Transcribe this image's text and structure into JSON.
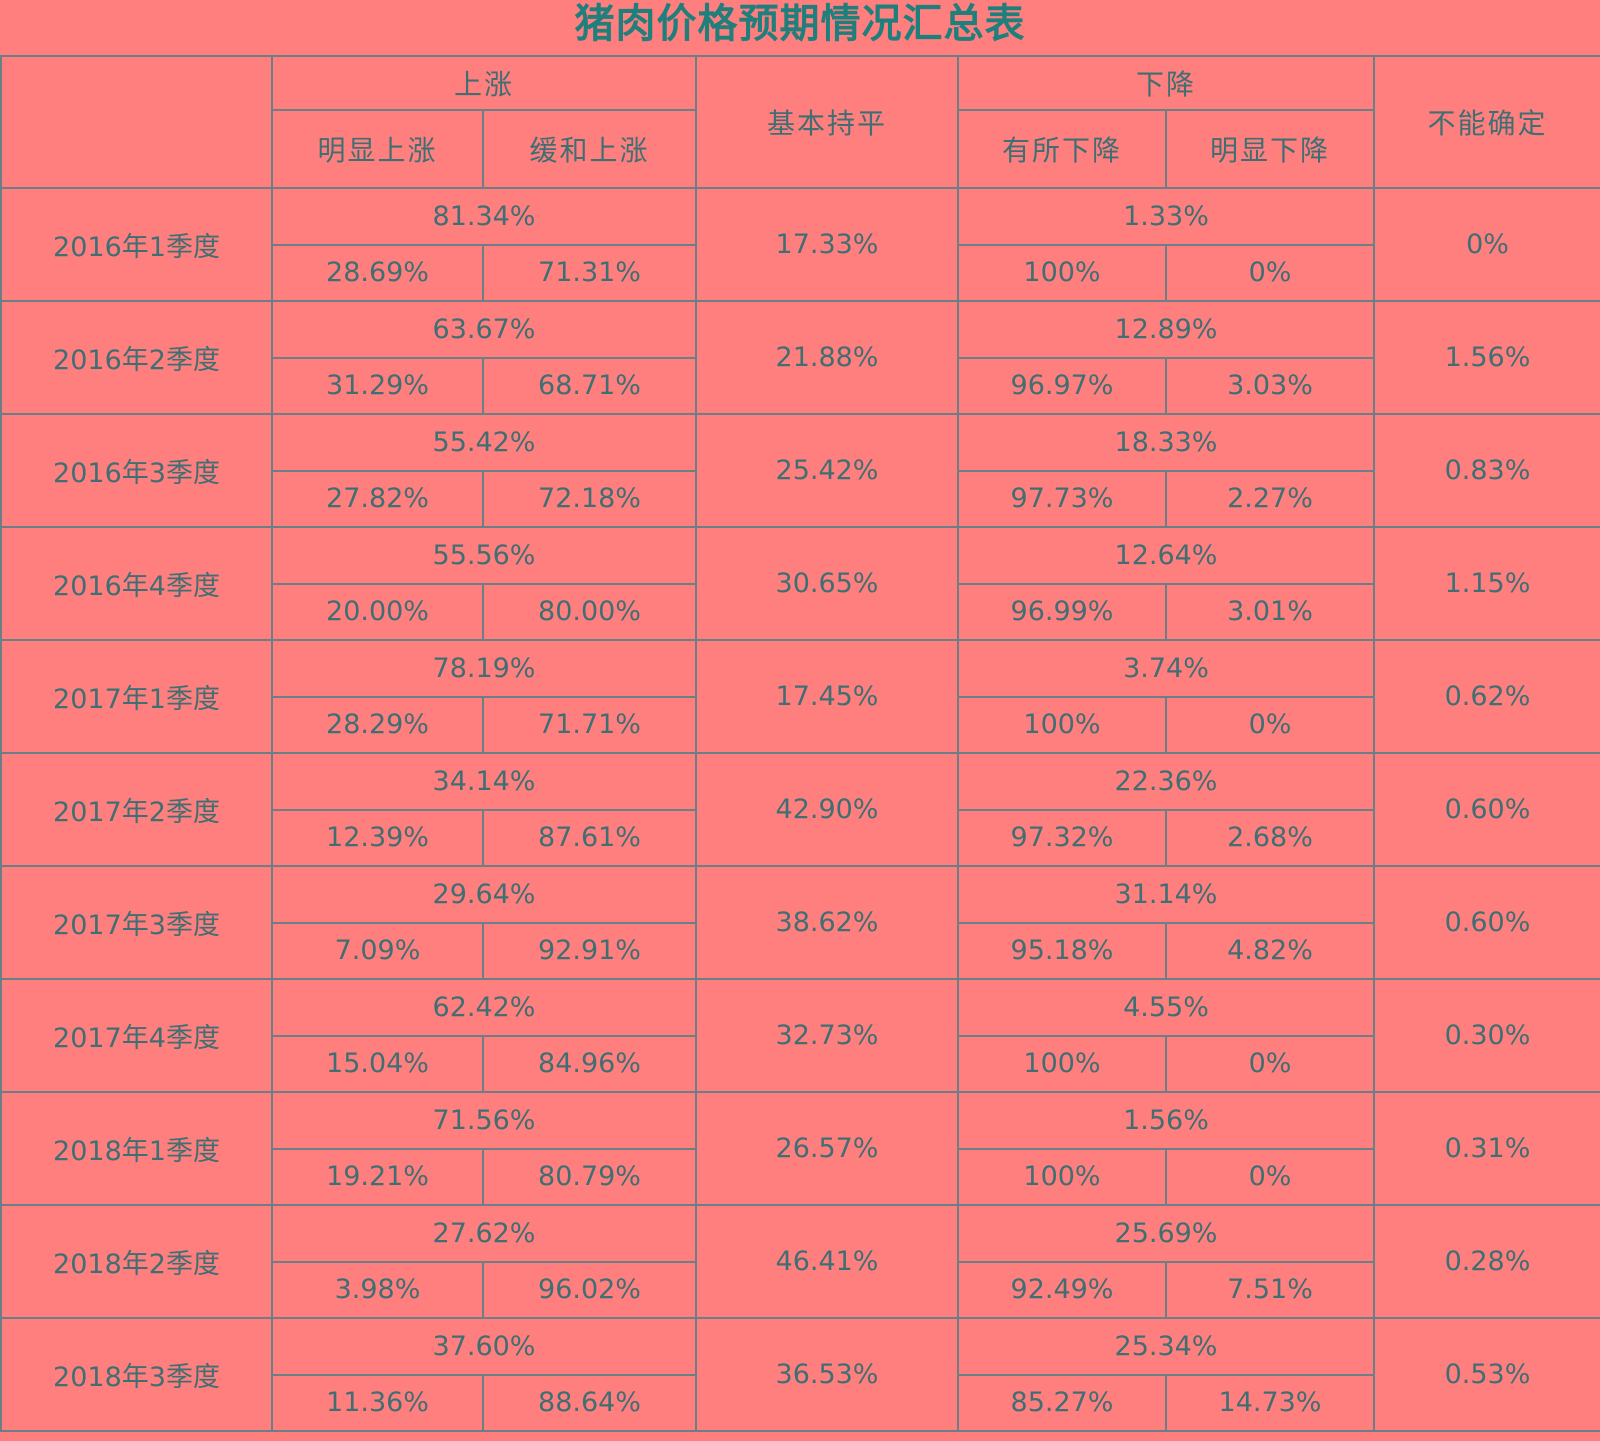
{
  "title": "猪肉价格预期情况汇总表",
  "headers": {
    "rise": "上涨",
    "rise_sharp": "明显上涨",
    "rise_mild": "缓和上涨",
    "flat": "基本持平",
    "fall": "下降",
    "fall_some": "有所下降",
    "fall_sharp": "明显下降",
    "uncertain": "不能确定"
  },
  "rows": [
    {
      "period": "2016年1季度",
      "rise": "81.34%",
      "rise_sharp": "28.69%",
      "rise_mild": "71.31%",
      "flat": "17.33%",
      "fall": "1.33%",
      "fall_some": "100%",
      "fall_sharp": "0%",
      "uncertain": "0%"
    },
    {
      "period": "2016年2季度",
      "rise": "63.67%",
      "rise_sharp": "31.29%",
      "rise_mild": "68.71%",
      "flat": "21.88%",
      "fall": "12.89%",
      "fall_some": "96.97%",
      "fall_sharp": "3.03%",
      "uncertain": "1.56%"
    },
    {
      "period": "2016年3季度",
      "rise": "55.42%",
      "rise_sharp": "27.82%",
      "rise_mild": "72.18%",
      "flat": "25.42%",
      "fall": "18.33%",
      "fall_some": "97.73%",
      "fall_sharp": "2.27%",
      "uncertain": "0.83%"
    },
    {
      "period": "2016年4季度",
      "rise": "55.56%",
      "rise_sharp": "20.00%",
      "rise_mild": "80.00%",
      "flat": "30.65%",
      "fall": "12.64%",
      "fall_some": "96.99%",
      "fall_sharp": "3.01%",
      "uncertain": "1.15%"
    },
    {
      "period": "2017年1季度",
      "rise": "78.19%",
      "rise_sharp": "28.29%",
      "rise_mild": "71.71%",
      "flat": "17.45%",
      "fall": "3.74%",
      "fall_some": "100%",
      "fall_sharp": "0%",
      "uncertain": "0.62%"
    },
    {
      "period": "2017年2季度",
      "rise": "34.14%",
      "rise_sharp": "12.39%",
      "rise_mild": "87.61%",
      "flat": "42.90%",
      "fall": "22.36%",
      "fall_some": "97.32%",
      "fall_sharp": "2.68%",
      "uncertain": "0.60%"
    },
    {
      "period": "2017年3季度",
      "rise": "29.64%",
      "rise_sharp": "7.09%",
      "rise_mild": "92.91%",
      "flat": "38.62%",
      "fall": "31.14%",
      "fall_some": "95.18%",
      "fall_sharp": "4.82%",
      "uncertain": "0.60%"
    },
    {
      "period": "2017年4季度",
      "rise": "62.42%",
      "rise_sharp": "15.04%",
      "rise_mild": "84.96%",
      "flat": "32.73%",
      "fall": "4.55%",
      "fall_some": "100%",
      "fall_sharp": "0%",
      "uncertain": "0.30%"
    },
    {
      "period": "2018年1季度",
      "rise": "71.56%",
      "rise_sharp": "19.21%",
      "rise_mild": "80.79%",
      "flat": "26.57%",
      "fall": "1.56%",
      "fall_some": "100%",
      "fall_sharp": "0%",
      "uncertain": "0.31%"
    },
    {
      "period": "2018年2季度",
      "rise": "27.62%",
      "rise_sharp": "3.98%",
      "rise_mild": "96.02%",
      "flat": "46.41%",
      "fall": "25.69%",
      "fall_some": "92.49%",
      "fall_sharp": "7.51%",
      "uncertain": "0.28%"
    },
    {
      "period": "2018年3季度",
      "rise": "37.60%",
      "rise_sharp": "11.36%",
      "rise_mild": "88.64%",
      "flat": "36.53%",
      "fall": "25.34%",
      "fall_some": "85.27%",
      "fall_sharp": "14.73%",
      "uncertain": "0.53%"
    }
  ]
}
